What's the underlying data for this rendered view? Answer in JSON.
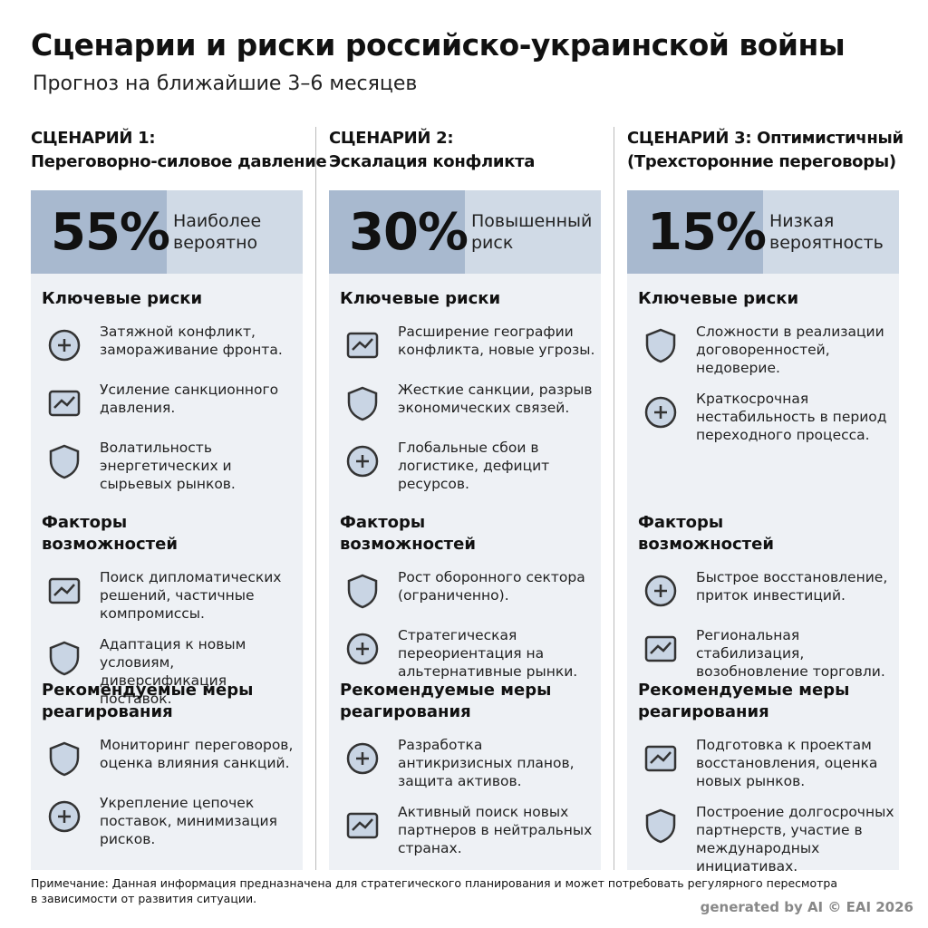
{
  "header": {
    "title": "Сценарии и риски российско-украинской войны",
    "subtitle": "Прогноз на ближайшие 3–6 месяцев"
  },
  "scenarios": [
    {
      "label": "СЦЕНАРИЙ 1:",
      "name": "Переговорно-силовое давление",
      "percent": "55%",
      "likelihood": "Наиболее вероятно",
      "sections": [
        {
          "title": "Ключевые риски",
          "items": [
            "Затяжной конфликт, замораживание фронта.",
            "Усиление санкционного давления.",
            "Волатильность энергетических и сырьевых рынков."
          ]
        },
        {
          "title": "Факторы возможностей",
          "items": [
            "Поиск дипломатических решений, частичные компромиссы.",
            "Адаптация к новым условиям, диверсификация поставок."
          ]
        },
        {
          "title": "Рекомендуемые меры реагирования",
          "items": [
            "Мониторинг переговоров, оценка влияния санкций.",
            "Укрепление цепочек поставок, минимизация рисков."
          ]
        }
      ]
    },
    {
      "label": "СЦЕНАРИЙ 2:",
      "name": "Эскалация конфликта",
      "percent": "30%",
      "likelihood": "Повышенный риск",
      "sections": [
        {
          "title": "Ключевые риски",
          "items": [
            "Расширение географии конфликта, новые угрозы.",
            "Жесткие санкции, разрыв экономических связей.",
            "Глобальные сбои в логистике, дефицит ресурсов."
          ]
        },
        {
          "title": "Факторы возможностей",
          "items": [
            "Рост оборонного сектора (ограниченно).",
            "Стратегическая переориентация на альтернативные рынки."
          ]
        },
        {
          "title": "Рекомендуемые меры реагирования",
          "items": [
            "Разработка антикризисных планов, защита активов.",
            "Активный поиск новых партнеров в нейтральных странах."
          ]
        }
      ]
    },
    {
      "label": "СЦЕНАРИЙ 3: Оптимистичный",
      "name": "(Трехсторонние переговоры)",
      "percent": "15%",
      "likelihood": "Низкая вероятность",
      "sections": [
        {
          "title": "Ключевые риски",
          "items": [
            "Сложности в реализации договоренностей, недоверие.",
            "Краткосрочная нестабильность в период переходного процесса."
          ]
        },
        {
          "title": "Факторы возможностей",
          "items": [
            "Быстрое восстановление, приток инвестиций.",
            "Региональная стабилизация, возобновление торговли."
          ]
        },
        {
          "title": "Рекомендуемые меры реагирования",
          "items": [
            "Подготовка к проектам восстановления, оценка новых рынков.",
            "Построение долгосрочных партнерств, участие в международных инициативах."
          ]
        }
      ]
    }
  ],
  "note": "Примечание: Данная информация предназначена для стратегического планирования и может потребовать регулярного пересмотра в зависимости от развития ситуации.",
  "watermark": "generated by AI © EAI 2026"
}
